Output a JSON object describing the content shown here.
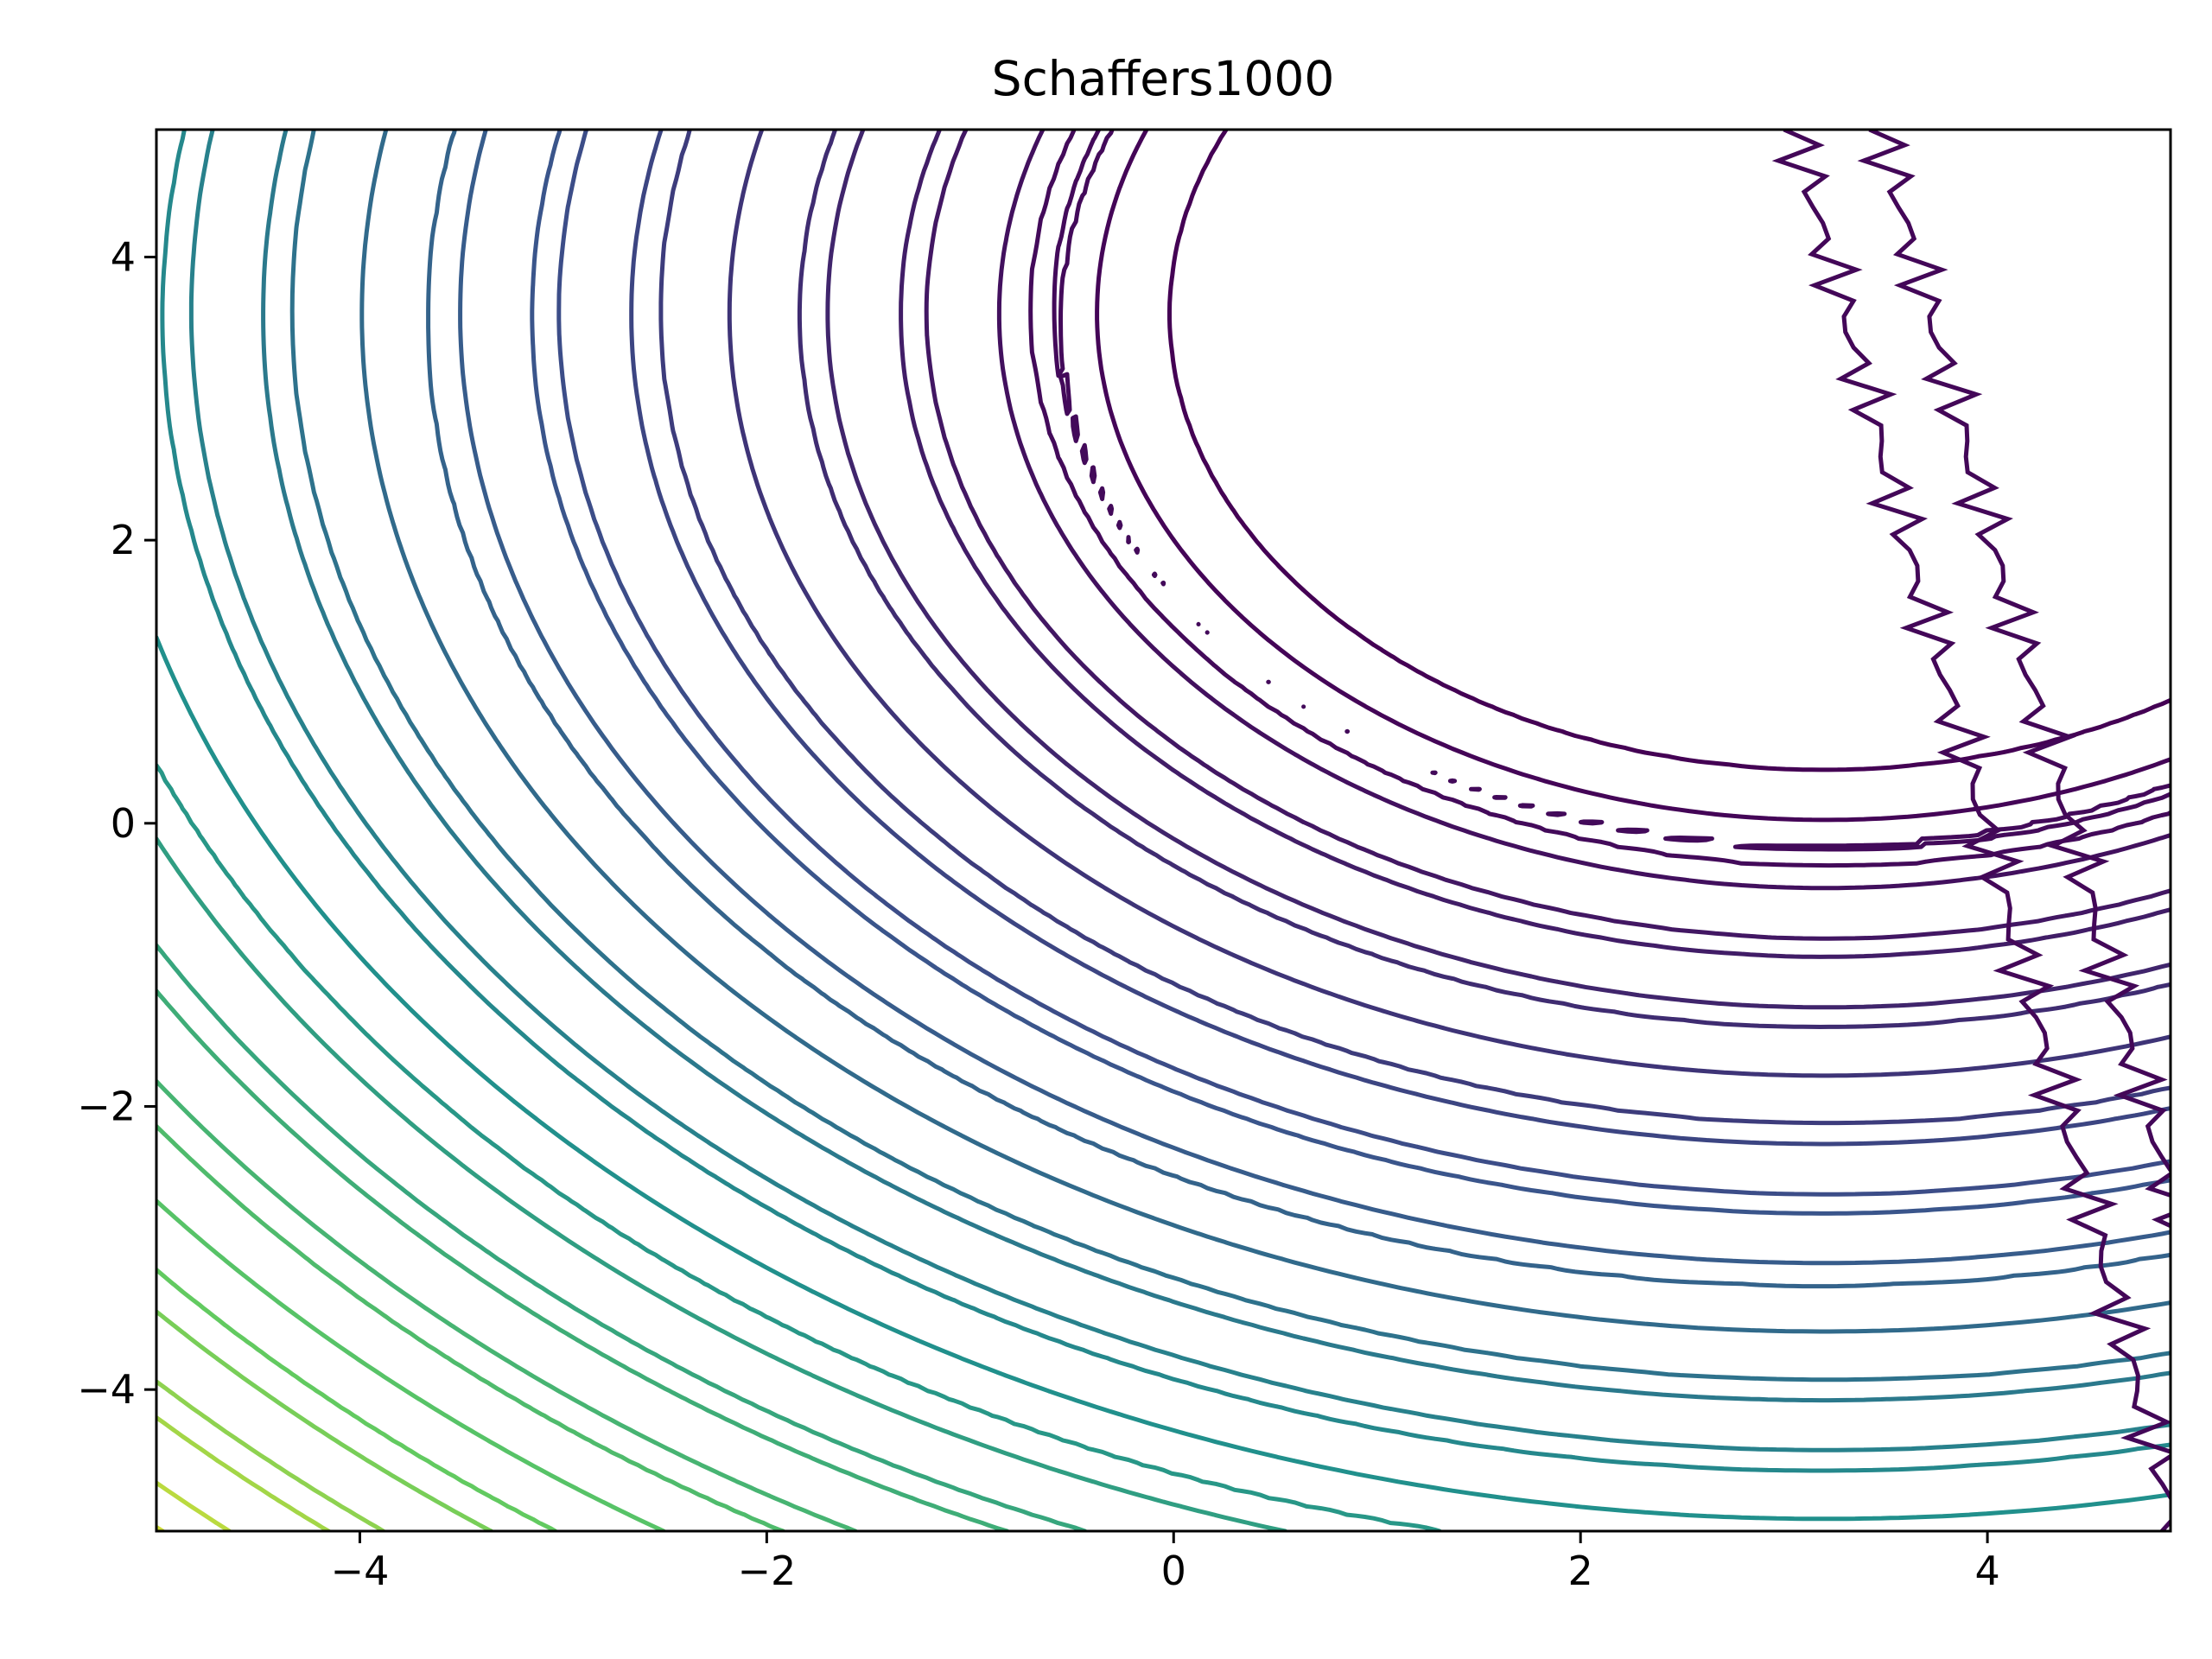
{
  "chart_data": {
    "type": "contour",
    "title": "Schaffers1000",
    "xlabel": "",
    "ylabel": "",
    "xlim": [
      -5,
      4.9
    ],
    "ylim": [
      -5,
      4.9
    ],
    "x_ticks": [
      -4,
      -2,
      0,
      2,
      4
    ],
    "y_ticks": [
      -4,
      -2,
      0,
      2,
      4
    ],
    "x_tick_labels": [
      "−4",
      "−2",
      "0",
      "2",
      "4"
    ],
    "y_tick_labels": [
      "−4",
      "−2",
      "0",
      "2",
      "4"
    ],
    "colormap": "viridis",
    "colormap_stops": [
      "#440154",
      "#3b528b",
      "#21918c",
      "#5ec962",
      "#fde725"
    ],
    "grid": false,
    "legend": "none"
  }
}
